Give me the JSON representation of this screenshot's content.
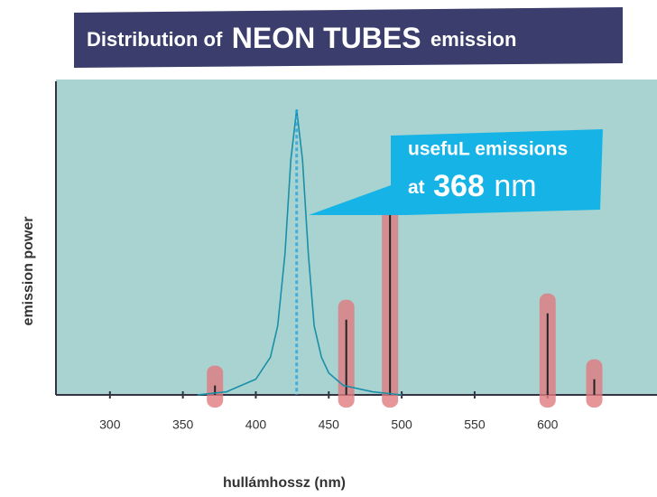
{
  "chart_data": {
    "type": "line",
    "title_parts": [
      "Distribution of",
      "NEON TUBES",
      "emission"
    ],
    "callout": {
      "line1": "usefuL emissions",
      "prefix": "at",
      "number": "368",
      "unit": "nm"
    },
    "x_label": "hullámhossz (nm)",
    "y_label": "emission power",
    "xlim": [
      263,
      675
    ],
    "xticks": [
      300,
      350,
      400,
      450,
      500,
      550,
      600
    ],
    "ylim": [
      0,
      100
    ],
    "series": [
      {
        "color": "#1a8fa8",
        "x": [
          360,
          380,
          400,
          410,
          415,
          420,
          424,
          428,
          432,
          436,
          440,
          445,
          450,
          460,
          480,
          500
        ],
        "values": [
          0,
          1,
          5,
          12,
          22,
          45,
          75,
          91,
          75,
          45,
          22,
          12,
          7,
          3,
          1,
          0
        ]
      }
    ],
    "emission_lines": {
      "color": "#222222",
      "highlight": "#e07a80",
      "x": [
        372,
        462,
        492,
        600,
        632
      ],
      "values": [
        3,
        24,
        59,
        26,
        5
      ]
    }
  }
}
